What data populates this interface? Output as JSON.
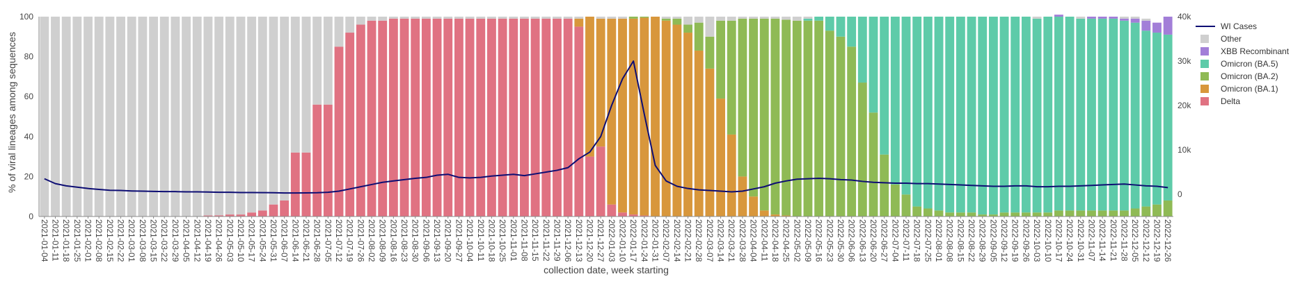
{
  "chart_data": {
    "type": "bar",
    "subtype": "stacked-100-with-line-overlay",
    "xlabel": "collection date, week starting",
    "ylabel": "% of viral lineages among sequences",
    "ylim": [
      0,
      100
    ],
    "y2lim": [
      -5000,
      40000
    ],
    "y_ticks": [
      "0",
      "20",
      "40",
      "60",
      "80",
      "100"
    ],
    "y2_ticks": [
      "0",
      "10k",
      "20k",
      "30k",
      "40k"
    ],
    "y2_tick_values": [
      0,
      10000,
      20000,
      30000,
      40000
    ],
    "grid": false,
    "legend_position": "right",
    "categories": [
      "2021-01-04",
      "2021-01-11",
      "2021-01-18",
      "2021-01-25",
      "2021-02-01",
      "2021-02-08",
      "2021-02-15",
      "2021-02-22",
      "2021-03-01",
      "2021-03-08",
      "2021-03-15",
      "2021-03-22",
      "2021-03-29",
      "2021-04-05",
      "2021-04-12",
      "2021-04-19",
      "2021-04-26",
      "2021-05-03",
      "2021-05-10",
      "2021-05-17",
      "2021-05-24",
      "2021-05-31",
      "2021-06-07",
      "2021-06-14",
      "2021-06-21",
      "2021-06-28",
      "2021-07-05",
      "2021-07-12",
      "2021-07-19",
      "2021-07-26",
      "2021-08-02",
      "2021-08-09",
      "2021-08-16",
      "2021-08-23",
      "2021-08-30",
      "2021-09-06",
      "2021-09-13",
      "2021-09-20",
      "2021-09-27",
      "2021-10-04",
      "2021-10-11",
      "2021-10-18",
      "2021-10-25",
      "2021-11-01",
      "2021-11-08",
      "2021-11-15",
      "2021-11-22",
      "2021-11-29",
      "2021-12-06",
      "2021-12-13",
      "2021-12-20",
      "2021-12-27",
      "2022-01-03",
      "2022-01-10",
      "2022-01-17",
      "2022-01-24",
      "2022-01-31",
      "2022-02-07",
      "2022-02-14",
      "2022-02-21",
      "2022-02-28",
      "2022-03-07",
      "2022-03-14",
      "2022-03-21",
      "2022-03-28",
      "2022-04-04",
      "2022-04-11",
      "2022-04-18",
      "2022-04-25",
      "2022-05-02",
      "2022-05-09",
      "2022-05-16",
      "2022-05-23",
      "2022-05-30",
      "2022-06-06",
      "2022-06-13",
      "2022-06-20",
      "2022-06-27",
      "2022-07-04",
      "2022-07-11",
      "2022-07-18",
      "2022-07-25",
      "2022-08-01",
      "2022-08-08",
      "2022-08-15",
      "2022-08-22",
      "2022-08-29",
      "2022-09-05",
      "2022-09-12",
      "2022-09-19",
      "2022-09-26",
      "2022-10-03",
      "2022-10-10",
      "2022-10-17",
      "2022-10-24",
      "2022-10-31",
      "2022-11-07",
      "2022-11-14",
      "2022-11-21",
      "2022-11-28",
      "2022-12-05",
      "2022-12-12",
      "2022-12-19",
      "2022-12-26"
    ],
    "series": [
      {
        "name": "Delta",
        "color": "#e07282",
        "values": [
          0,
          0,
          0,
          0,
          0,
          0,
          0,
          0,
          0,
          0,
          0,
          0,
          0,
          0,
          0,
          0.5,
          0.6,
          1,
          1,
          2,
          3,
          6,
          8,
          32,
          32,
          56,
          56,
          85,
          92,
          96,
          98,
          98,
          99,
          99,
          99,
          99,
          99,
          99,
          99,
          99,
          99,
          99,
          99,
          99,
          99,
          99,
          99,
          99,
          99,
          95,
          30,
          35,
          6,
          2,
          1,
          0.5,
          0,
          0,
          0,
          0,
          0,
          0,
          0,
          0,
          0,
          0,
          0,
          0,
          0,
          0,
          0,
          0,
          0,
          0,
          0,
          0,
          0,
          0,
          0,
          0,
          0,
          0,
          0,
          0,
          0,
          0,
          0,
          0,
          0,
          0,
          0,
          0,
          0,
          0,
          0,
          0,
          0,
          0,
          0,
          0,
          0,
          0,
          0,
          0
        ]
      },
      {
        "name": "Omicron (BA.1)",
        "color": "#d8973c",
        "values": [
          0,
          0,
          0,
          0,
          0,
          0,
          0,
          0,
          0,
          0,
          0,
          0,
          0,
          0,
          0,
          0,
          0,
          0,
          0,
          0,
          0,
          0,
          0,
          0,
          0,
          0,
          0,
          0,
          0,
          0,
          0,
          0,
          0,
          0,
          0,
          0,
          0,
          0,
          0,
          0,
          0,
          0,
          0,
          0,
          0,
          0,
          0,
          0,
          0,
          4,
          70,
          64,
          93,
          97,
          98,
          99,
          100,
          98,
          96,
          92,
          83,
          74,
          59,
          41,
          20,
          10,
          3,
          1,
          0.5,
          0,
          0,
          0,
          0,
          0,
          0,
          0,
          0,
          0,
          0,
          0,
          0,
          0,
          0,
          0,
          0,
          0,
          0,
          0,
          0,
          0,
          0,
          0,
          0,
          0,
          0,
          0,
          0,
          0,
          0,
          0,
          0,
          0,
          0,
          0
        ]
      },
      {
        "name": "Omicron (BA.2)",
        "color": "#8fba55",
        "values": [
          0,
          0,
          0,
          0,
          0,
          0,
          0,
          0,
          0,
          0,
          0,
          0,
          0,
          0,
          0,
          0,
          0,
          0,
          0,
          0,
          0,
          0,
          0,
          0,
          0,
          0,
          0,
          0,
          0,
          0,
          0,
          0,
          0,
          0,
          0,
          0,
          0,
          0,
          0,
          0,
          0,
          0,
          0,
          0,
          0,
          0,
          0,
          0,
          0,
          0,
          0,
          0,
          0,
          0,
          1,
          0.5,
          0,
          1,
          3,
          4,
          14,
          16,
          39,
          57,
          79,
          89,
          96,
          98,
          98,
          98,
          98,
          98,
          93,
          90,
          85,
          67,
          52,
          31,
          16,
          11,
          5,
          4,
          3,
          2,
          2,
          2,
          1,
          1,
          2,
          2,
          2,
          2,
          2,
          3,
          3,
          3,
          3,
          3,
          3,
          3,
          4,
          5,
          6,
          8
        ]
      },
      {
        "name": "Omicron (BA.5)",
        "color": "#5ecba9",
        "values": [
          0,
          0,
          0,
          0,
          0,
          0,
          0,
          0,
          0,
          0,
          0,
          0,
          0,
          0,
          0,
          0,
          0,
          0,
          0,
          0,
          0,
          0,
          0,
          0,
          0,
          0,
          0,
          0,
          0,
          0,
          0,
          0,
          0,
          0,
          0,
          0,
          0,
          0,
          0,
          0,
          0,
          0,
          0,
          0,
          0,
          0,
          0,
          0,
          0,
          0,
          0,
          0,
          0,
          0,
          0,
          0,
          0,
          0,
          0,
          0,
          0,
          0,
          0,
          0,
          0,
          0,
          0,
          0,
          0,
          0,
          1,
          2,
          7,
          10,
          15,
          33,
          48,
          69,
          84,
          89,
          95,
          96,
          97,
          98,
          98,
          98,
          99,
          99,
          98,
          98,
          98,
          97,
          98,
          97,
          97,
          96,
          96,
          96,
          96,
          95,
          93,
          88,
          86,
          83
        ]
      },
      {
        "name": "XBB Recombinant",
        "color": "#a27ed8",
        "values": [
          0,
          0,
          0,
          0,
          0,
          0,
          0,
          0,
          0,
          0,
          0,
          0,
          0,
          0,
          0,
          0,
          0,
          0,
          0,
          0,
          0,
          0,
          0,
          0,
          0,
          0,
          0,
          0,
          0,
          0,
          0,
          0,
          0,
          0,
          0,
          0,
          0,
          0,
          0,
          0,
          0,
          0,
          0,
          0,
          0,
          0,
          0,
          0,
          0,
          0,
          0,
          0,
          0,
          0,
          0,
          0,
          0,
          0,
          0,
          0,
          0,
          0,
          0,
          0,
          0,
          0,
          0,
          0,
          0,
          0,
          0,
          0,
          0,
          0,
          0,
          0,
          0,
          0,
          0,
          0,
          0,
          0,
          0,
          0,
          0,
          0,
          0,
          0,
          0,
          0,
          0,
          0,
          0,
          1,
          0,
          0,
          1,
          1,
          1,
          1,
          2,
          5,
          5,
          9
        ]
      },
      {
        "name": "Other",
        "color": "#cfcfcf",
        "values": [
          100,
          100,
          100,
          100,
          100,
          100,
          100,
          100,
          100,
          100,
          100,
          100,
          100,
          100,
          100,
          99.5,
          99.4,
          99,
          99,
          98,
          97,
          94,
          92,
          68,
          68,
          44,
          44,
          15,
          8,
          4,
          2,
          2,
          1,
          1,
          1,
          1,
          1,
          1,
          1,
          1,
          1,
          1,
          1,
          1,
          1,
          1,
          1,
          1,
          1,
          1,
          0,
          1,
          1,
          1,
          0,
          0,
          0,
          1,
          1,
          4,
          3,
          10,
          2,
          2,
          1,
          1,
          1,
          1,
          1.5,
          2,
          1,
          0,
          0,
          0,
          0,
          0,
          0,
          0,
          0,
          0,
          0,
          0,
          0,
          0,
          0,
          0,
          0,
          0,
          0,
          0,
          0,
          1,
          0,
          0,
          0,
          1,
          0,
          0,
          0,
          1,
          1,
          1,
          0,
          0
        ]
      }
    ],
    "line": {
      "name": "WI Cases",
      "color": "#0d0d73",
      "values": [
        3500,
        2400,
        1900,
        1600,
        1300,
        1100,
        900,
        850,
        750,
        700,
        650,
        600,
        600,
        550,
        550,
        500,
        450,
        450,
        400,
        400,
        380,
        350,
        300,
        300,
        320,
        350,
        450,
        700,
        1200,
        1700,
        2200,
        2700,
        3000,
        3300,
        3600,
        3800,
        4300,
        4500,
        3800,
        3700,
        3800,
        4100,
        4300,
        4500,
        4200,
        4600,
        5000,
        5400,
        6000,
        8000,
        9500,
        13000,
        20000,
        26000,
        30000,
        18000,
        6500,
        3000,
        1800,
        1300,
        1000,
        850,
        700,
        550,
        700,
        1200,
        1700,
        2500,
        3000,
        3400,
        3500,
        3600,
        3500,
        3300,
        3200,
        2900,
        2700,
        2600,
        2500,
        2500,
        2400,
        2400,
        2300,
        2200,
        2100,
        2000,
        1900,
        1800,
        1800,
        1900,
        1900,
        1700,
        1700,
        1800,
        1800,
        1900,
        2000,
        2100,
        2200,
        2300,
        2100,
        1900,
        1800,
        1500
      ]
    },
    "legend": [
      "WI Cases",
      "Other",
      "XBB Recombinant",
      "Omicron (BA.5)",
      "Omicron (BA.2)",
      "Omicron (BA.1)",
      "Delta"
    ]
  }
}
